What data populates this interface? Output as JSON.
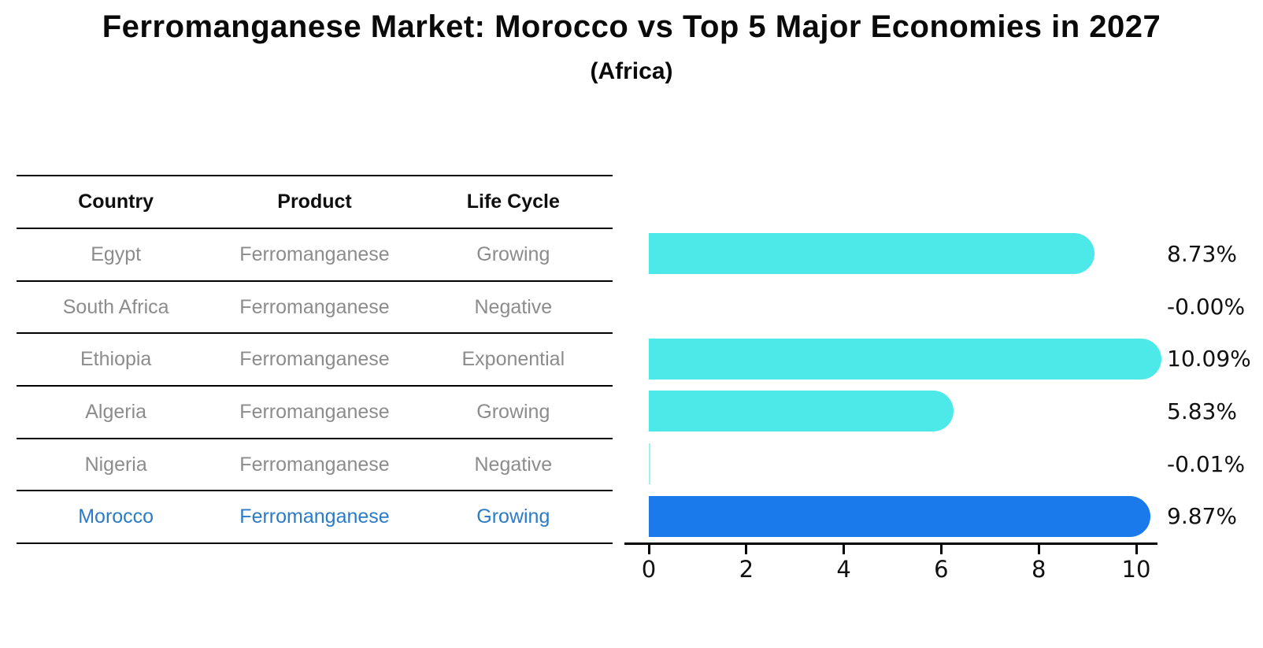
{
  "header": {
    "title": "Ferromanganese Market: Morocco vs Top 5 Major Economies in 2027",
    "subtitle": "(Africa)"
  },
  "table": {
    "columns": [
      "Country",
      "Product",
      "Life Cycle"
    ],
    "rows": [
      {
        "country": "Egypt",
        "product": "Ferromanganese",
        "life_cycle": "Growing",
        "highlight": false
      },
      {
        "country": "South Africa",
        "product": "Ferromanganese",
        "life_cycle": "Negative",
        "highlight": false
      },
      {
        "country": "Ethiopia",
        "product": "Ferromanganese",
        "life_cycle": "Exponential",
        "highlight": false
      },
      {
        "country": "Algeria",
        "product": "Ferromanganese",
        "life_cycle": "Growing",
        "highlight": false
      },
      {
        "country": "Nigeria",
        "product": "Ferromanganese",
        "life_cycle": "Negative",
        "highlight": false
      },
      {
        "country": "Morocco",
        "product": "Ferromanganese",
        "life_cycle": "Growing",
        "highlight": true
      }
    ]
  },
  "chart_data": {
    "type": "bar",
    "orientation": "horizontal",
    "title": "Ferromanganese Market: Morocco vs Top 5 Major Economies in 2027 (Africa)",
    "categories": [
      "Egypt",
      "South Africa",
      "Ethiopia",
      "Algeria",
      "Nigeria",
      "Morocco"
    ],
    "values": [
      8.73,
      -0.0,
      10.09,
      5.83,
      -0.01,
      9.87
    ],
    "labels": [
      "8.73%",
      "-0.00%",
      "10.09%",
      "5.83%",
      "-0.01%",
      "9.87%"
    ],
    "xticks": [
      0,
      2,
      4,
      6,
      8,
      10
    ],
    "xlim": [
      0,
      10.5
    ],
    "grid": false,
    "legend": "none",
    "highlight_index": 5,
    "bar_color": "#4DE8E8",
    "highlight_color": "#1B7AEB"
  },
  "colors": {
    "bar": "#4DE8E8",
    "bar_sliver": "rgba(77,232,232,0.55)",
    "highlight_bar": "#1B7AEB",
    "row_text": "#8c8c8c",
    "highlight_text": "#2b7bc7",
    "axis": "#000000"
  }
}
